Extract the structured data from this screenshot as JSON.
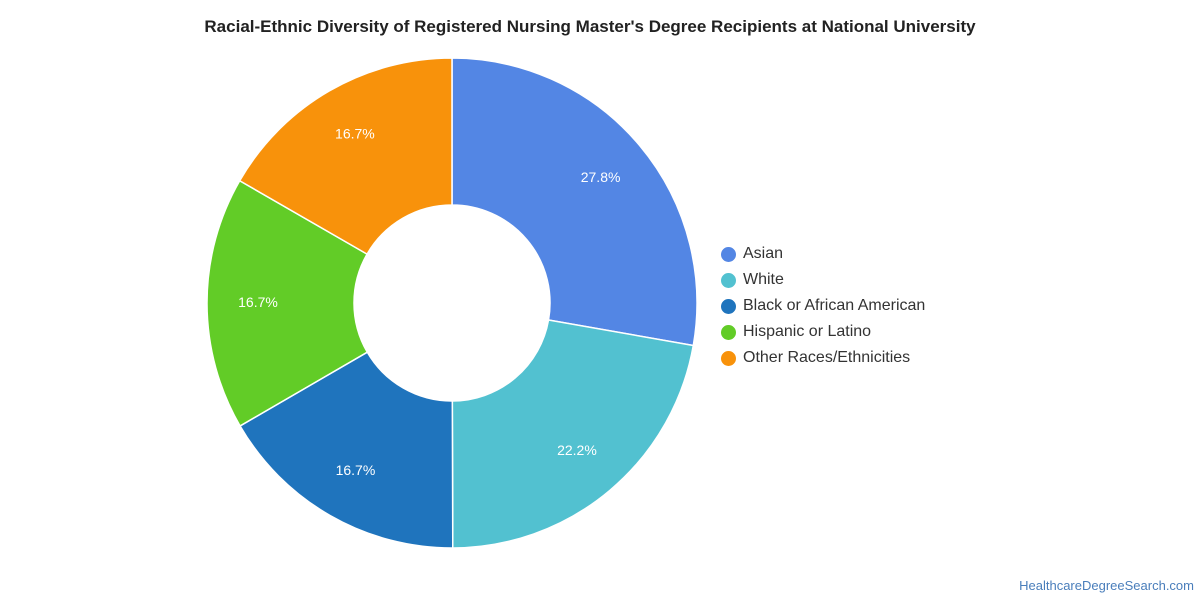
{
  "chart_data": {
    "type": "pie",
    "title": "Racial-Ethnic Diversity of Registered Nursing Master's Degree Recipients at National University",
    "categories": [
      "Asian",
      "White",
      "Black or African American",
      "Hispanic or Latino",
      "Other Races/Ethnicities"
    ],
    "values": [
      27.8,
      22.2,
      16.7,
      16.7,
      16.7
    ],
    "value_labels": [
      "27.8%",
      "22.2%",
      "16.7%",
      "16.7%",
      "16.7%"
    ],
    "colors": [
      "#5386e4",
      "#52c1d0",
      "#1f74bd",
      "#62cc27",
      "#f8920b"
    ],
    "donut": true,
    "legend_position": "right"
  },
  "credit": "HealthcareDegreeSearch.com"
}
